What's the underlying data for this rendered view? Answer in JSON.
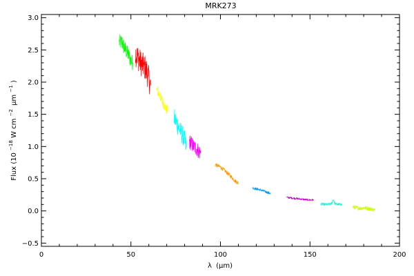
{
  "chart_data": {
    "type": "line",
    "title": "MRK273",
    "xlabel_symbol": "λ",
    "xlabel_unit": "(μm)",
    "ylabel_prefix": "Flux (10",
    "ylabel_exp1": "−18",
    "ylabel_units": " W cm",
    "ylabel_exp2": "−2",
    "ylabel_mu": "μm",
    "ylabel_exp3": "−1",
    "ylabel_close": ")",
    "xlim": [
      0,
      200
    ],
    "ylim": [
      -0.55,
      3.05
    ],
    "x_ticks": [
      {
        "value": 0,
        "label": "0"
      },
      {
        "value": 50,
        "label": "50"
      },
      {
        "value": 100,
        "label": "100"
      },
      {
        "value": 150,
        "label": "150"
      },
      {
        "value": 200,
        "label": "200"
      }
    ],
    "y_ticks": [
      {
        "value": -0.5,
        "label": "−0.5"
      },
      {
        "value": 0.0,
        "label": "0.0"
      },
      {
        "value": 0.5,
        "label": "0.5"
      },
      {
        "value": 1.0,
        "label": "1.0"
      },
      {
        "value": 1.5,
        "label": "1.5"
      },
      {
        "value": 2.0,
        "label": "2.0"
      },
      {
        "value": 2.5,
        "label": "2.5"
      },
      {
        "value": 3.0,
        "label": "3.0"
      }
    ],
    "x_minor_step": 10,
    "y_minor_step": 0.1,
    "grid": false,
    "legend": "none",
    "series": [
      {
        "color": "#00ff00",
        "noise": 0.12,
        "x": [
          43.5,
          45,
          46,
          47,
          48,
          49,
          50,
          51
        ],
        "y": [
          2.62,
          2.62,
          2.55,
          2.5,
          2.45,
          2.4,
          2.33,
          2.3
        ]
      },
      {
        "color": "#ff0000",
        "noise": 0.2,
        "x": [
          52.5,
          54,
          55,
          56,
          57,
          58,
          59,
          60,
          61
        ],
        "y": [
          2.45,
          2.38,
          2.32,
          2.28,
          2.25,
          2.22,
          2.15,
          2.05,
          1.95
        ]
      },
      {
        "color": "#ffff00",
        "noise": 0.08,
        "x": [
          64.5,
          66,
          67,
          68,
          69,
          70.5
        ],
        "y": [
          1.88,
          1.8,
          1.74,
          1.68,
          1.62,
          1.55
        ]
      },
      {
        "color": "#00ffff",
        "noise": 0.15,
        "x": [
          74,
          75,
          76,
          77,
          78,
          79,
          80,
          81
        ],
        "y": [
          1.45,
          1.4,
          1.34,
          1.28,
          1.22,
          1.17,
          1.1,
          0.98
        ]
      },
      {
        "color": "#ff00ff",
        "noise": 0.12,
        "x": [
          82.5,
          84,
          85,
          86,
          87,
          88,
          89
        ],
        "y": [
          1.08,
          1.04,
          1.0,
          0.98,
          0.96,
          0.92,
          0.9
        ]
      },
      {
        "color": "#ff9900",
        "noise": 0.03,
        "x": [
          97,
          100,
          103,
          106,
          108,
          110
        ],
        "y": [
          0.72,
          0.68,
          0.61,
          0.53,
          0.47,
          0.43
        ]
      },
      {
        "color": "#0099ff",
        "noise": 0.02,
        "x": [
          118,
          120,
          122,
          124,
          126,
          128
        ],
        "y": [
          0.36,
          0.34,
          0.33,
          0.31,
          0.29,
          0.27
        ]
      },
      {
        "color": "#cc00cc",
        "noise": 0.015,
        "x": [
          137,
          140,
          143,
          146,
          149,
          152
        ],
        "y": [
          0.21,
          0.2,
          0.19,
          0.18,
          0.17,
          0.17
        ]
      },
      {
        "color": "#00ffcc",
        "noise": 0.02,
        "x": [
          156,
          158,
          160,
          162,
          163,
          164,
          166,
          168
        ],
        "y": [
          0.11,
          0.1,
          0.1,
          0.11,
          0.18,
          0.11,
          0.1,
          0.1
        ]
      },
      {
        "color": "#ccff00",
        "noise": 0.03,
        "x": [
          174,
          176,
          178,
          180,
          182,
          184,
          186.5
        ],
        "y": [
          0.06,
          0.05,
          0.04,
          0.05,
          0.04,
          0.03,
          0.01
        ]
      }
    ]
  }
}
